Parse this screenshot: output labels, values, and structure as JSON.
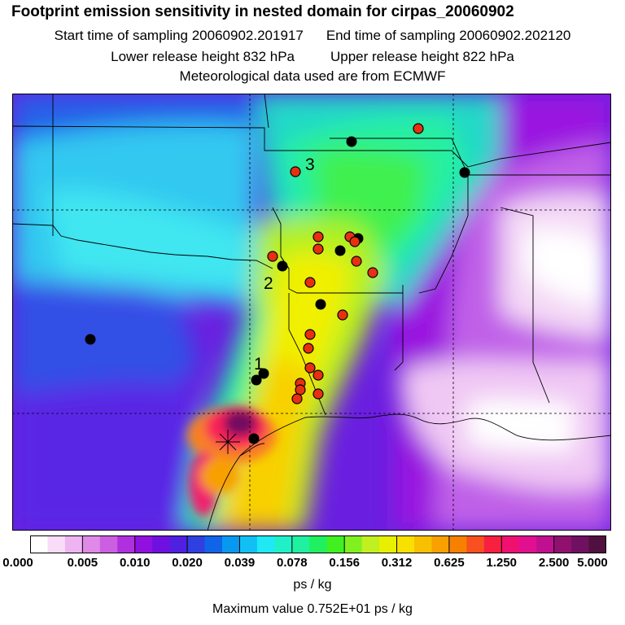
{
  "header": {
    "title": "Footprint emission sensitivity in nested domain for cirpas_20060902",
    "start_label": "Start time of sampling 20060902.201917",
    "end_label": "End time of sampling 20060902.202120",
    "lower_label": "Lower release height  832 hPa",
    "upper_label": "Upper release height  822 hPa",
    "met_label": "Meteorological data used are from ECMWF"
  },
  "map": {
    "markers": [
      {
        "label": "1"
      },
      {
        "label": "2"
      },
      {
        "label": "3"
      }
    ]
  },
  "colorbar": {
    "tick_labels": [
      "0.000",
      "0.005",
      "0.010",
      "0.020",
      "0.039",
      "0.078",
      "0.156",
      "0.312",
      "0.625",
      "1.250",
      "2.500",
      "5.000"
    ],
    "colors": [
      "#ffffff",
      "#f8dcf8",
      "#eeb4f2",
      "#e08ae8",
      "#cc5ee2",
      "#b030e0",
      "#9010e0",
      "#7010e0",
      "#5020e0",
      "#3040e0",
      "#1064e8",
      "#0898f0",
      "#10c0f4",
      "#20e8f4",
      "#20f0c8",
      "#20f0a0",
      "#20f060",
      "#40f020",
      "#80f020",
      "#c0f020",
      "#e8f000",
      "#f8e000",
      "#f8c000",
      "#f8a000",
      "#f88000",
      "#f85020",
      "#f82040",
      "#f01070",
      "#e01090",
      "#c01090",
      "#901070",
      "#701060",
      "#501040"
    ],
    "units": "ps / kg",
    "max_value": "Maximum value  0.752E+01 ps / kg"
  }
}
